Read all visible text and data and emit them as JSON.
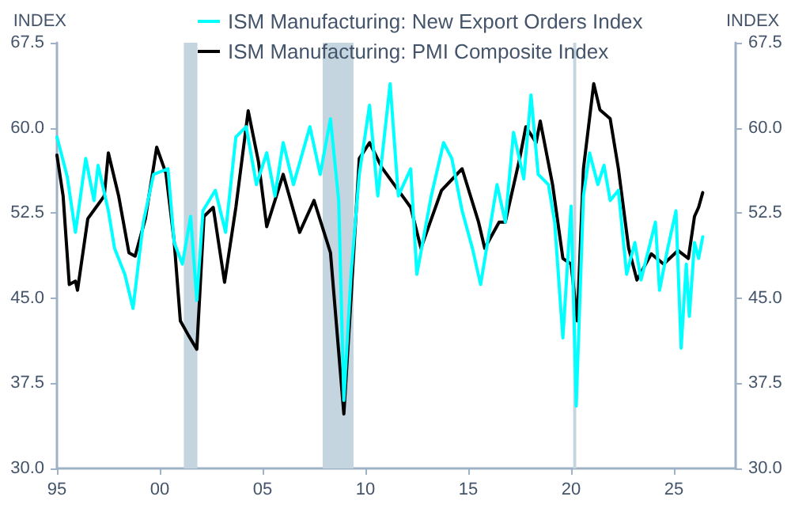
{
  "chart_data": {
    "type": "line",
    "ylabel": "INDEX",
    "y2label": "INDEX",
    "xlim": [
      1995,
      2028
    ],
    "xticks": [
      {
        "value": 1995,
        "label": "95"
      },
      {
        "value": 2000,
        "label": "00"
      },
      {
        "value": 2005,
        "label": "05"
      },
      {
        "value": 2010,
        "label": "10"
      },
      {
        "value": 2015,
        "label": "15"
      },
      {
        "value": 2020,
        "label": "20"
      },
      {
        "value": 2025,
        "label": "25"
      }
    ],
    "ylim": [
      30,
      67.5
    ],
    "yticks": [
      {
        "value": 30,
        "label": "30.0"
      },
      {
        "value": 37.5,
        "label": "37.5"
      },
      {
        "value": 45,
        "label": "45.0"
      },
      {
        "value": 52.5,
        "label": "52.5"
      },
      {
        "value": 60,
        "label": "60.0"
      },
      {
        "value": 67.5,
        "label": "67.5"
      }
    ],
    "y2lim": [
      30,
      67.5
    ],
    "y2ticks": [
      {
        "value": 30,
        "label": "30.0"
      },
      {
        "value": 37.5,
        "label": "37.5"
      },
      {
        "value": 45,
        "label": "45.0"
      },
      {
        "value": 52.5,
        "label": "52.5"
      },
      {
        "value": 60,
        "label": "60.0"
      },
      {
        "value": 67.5,
        "label": "67.5"
      }
    ],
    "grid": false,
    "legend": "top",
    "marker": "none",
    "line_style": "solid",
    "bands": [
      {
        "axis": "x",
        "from": 2001.17,
        "to": 2001.83,
        "color": "#c5d5e0"
      },
      {
        "axis": "x",
        "from": 2007.92,
        "to": 2009.42,
        "color": "#c5d5e0"
      },
      {
        "axis": "x",
        "from": 2020.1,
        "to": 2020.25,
        "color": "#c5d5e0"
      }
    ],
    "series": [
      {
        "name": "ISM Manufacturing: New Export Orders Index",
        "color": "#00ffff",
        "x": [
          1995.0,
          1995.5,
          1995.9,
          1996.4,
          1996.8,
          1997.0,
          1997.5,
          1997.8,
          1998.3,
          1998.7,
          1999.2,
          1999.7,
          2000.4,
          2000.7,
          2001.1,
          2001.5,
          2001.8,
          2002.1,
          2002.7,
          2003.2,
          2003.7,
          2004.2,
          2004.7,
          2005.2,
          2005.6,
          2006.0,
          2006.5,
          2007.3,
          2007.8,
          2008.3,
          2008.7,
          2008.95,
          2009.3,
          2009.7,
          2010.2,
          2010.6,
          2011.2,
          2011.6,
          2012.2,
          2012.5,
          2013.2,
          2013.8,
          2014.2,
          2014.7,
          2015.2,
          2015.6,
          2016.4,
          2016.8,
          2017.2,
          2017.7,
          2018.05,
          2018.4,
          2018.9,
          2019.2,
          2019.6,
          2020.0,
          2020.25,
          2020.6,
          2020.9,
          2021.3,
          2021.6,
          2021.9,
          2022.3,
          2022.7,
          2023.1,
          2023.4,
          2024.1,
          2024.3,
          2024.7,
          2025.1,
          2025.35,
          2025.6,
          2025.75,
          2026.0,
          2026.2,
          2026.4
        ],
        "values": [
          59.2,
          55.7,
          50.8,
          57.3,
          53.6,
          56.7,
          52.7,
          49.4,
          47.1,
          44.1,
          51.7,
          55.9,
          56.4,
          49.9,
          48.0,
          52.2,
          44.8,
          52.7,
          54.5,
          50.8,
          59.2,
          60.1,
          55.0,
          57.8,
          54.0,
          58.7,
          55.0,
          60.1,
          55.9,
          60.8,
          53.6,
          36.0,
          47.1,
          55.9,
          62.0,
          54.0,
          63.9,
          54.0,
          56.4,
          47.1,
          54.0,
          58.7,
          57.3,
          52.7,
          49.4,
          46.2,
          55.0,
          51.7,
          59.6,
          55.5,
          62.9,
          55.9,
          55.0,
          51.7,
          41.5,
          53.1,
          35.5,
          54.0,
          57.8,
          55.0,
          56.7,
          53.6,
          54.5,
          47.1,
          49.9,
          46.6,
          51.7,
          45.7,
          49.4,
          52.7,
          40.6,
          48.0,
          43.4,
          49.9,
          48.5,
          50.4
        ]
      },
      {
        "name": "ISM Manufacturing: PMI Composite Index",
        "color": "#000000",
        "x": [
          1995.0,
          1995.3,
          1995.6,
          1995.9,
          1996.0,
          1996.5,
          1996.9,
          1997.3,
          1997.5,
          1998.0,
          1998.5,
          1998.8,
          1999.3,
          1999.85,
          2000.3,
          2000.7,
          2001.0,
          2001.4,
          2001.8,
          2002.15,
          2002.6,
          2003.15,
          2003.7,
          2004.3,
          2004.8,
          2005.2,
          2006.0,
          2006.8,
          2007.5,
          2008.3,
          2008.95,
          2009.3,
          2009.7,
          2010.2,
          2010.8,
          2011.4,
          2012.2,
          2012.7,
          2013.7,
          2014.7,
          2015.5,
          2015.8,
          2016.5,
          2016.8,
          2017.5,
          2017.8,
          2018.3,
          2018.5,
          2019.1,
          2019.6,
          2020.0,
          2020.3,
          2020.6,
          2021.1,
          2021.4,
          2021.9,
          2022.3,
          2022.8,
          2023.2,
          2023.9,
          2024.5,
          2025.2,
          2025.7,
          2026.0,
          2026.2,
          2026.4
        ],
        "values": [
          57.6,
          54.0,
          46.2,
          46.5,
          45.7,
          52.0,
          53.0,
          54.0,
          57.8,
          54.0,
          49.0,
          48.7,
          52.0,
          58.3,
          56.0,
          50.0,
          43.0,
          41.7,
          40.5,
          52.2,
          53.0,
          46.4,
          53.0,
          61.5,
          57.0,
          51.3,
          55.9,
          50.8,
          53.6,
          49.0,
          34.8,
          45.0,
          57.3,
          58.7,
          56.5,
          55.0,
          53.0,
          49.4,
          54.5,
          56.4,
          51.7,
          49.4,
          51.7,
          51.7,
          57.3,
          60.1,
          58.7,
          60.6,
          55.0,
          48.5,
          48.0,
          43.0,
          56.4,
          63.9,
          61.6,
          60.8,
          56.4,
          49.4,
          46.6,
          48.9,
          48.0,
          49.2,
          48.5,
          52.2,
          53.0,
          54.3
        ]
      }
    ]
  }
}
